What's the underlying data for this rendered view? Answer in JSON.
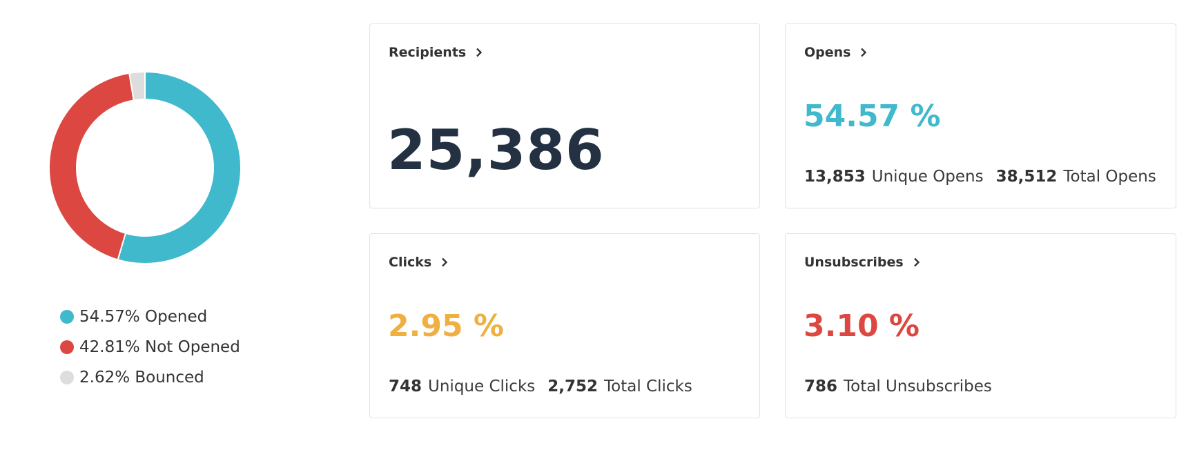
{
  "chart_data": {
    "type": "pie",
    "categories": [
      "Opened",
      "Not Opened",
      "Bounced"
    ],
    "values": [
      54.57,
      42.81,
      2.62
    ],
    "colors": [
      "#40b9cc",
      "#dc4741",
      "#dddddd"
    ],
    "legend": [
      {
        "label": "54.57% Opened",
        "color": "#40b9cc"
      },
      {
        "label": "42.81% Not Opened",
        "color": "#dc4741"
      },
      {
        "label": "2.62% Bounced",
        "color": "#dddddd"
      }
    ]
  },
  "cards": {
    "recipients": {
      "title": "Recipients",
      "value": "25,386"
    },
    "opens": {
      "title": "Opens",
      "percent": "54.57 %",
      "color": "#40b9cc",
      "stats": [
        {
          "num": "13,853",
          "label": "Unique Opens"
        },
        {
          "num": "38,512",
          "label": "Total Opens"
        }
      ]
    },
    "clicks": {
      "title": "Clicks",
      "percent": "2.95 %",
      "color": "#efb041",
      "stats": [
        {
          "num": "748",
          "label": "Unique Clicks"
        },
        {
          "num": "2,752",
          "label": "Total Clicks"
        }
      ]
    },
    "unsubscribes": {
      "title": "Unsubscribes",
      "percent": "3.10 %",
      "color": "#dc4741",
      "stats": [
        {
          "num": "786",
          "label": "Total Unsubscribes"
        }
      ]
    }
  },
  "icons": {
    "chevron": "chevron-right-icon"
  }
}
